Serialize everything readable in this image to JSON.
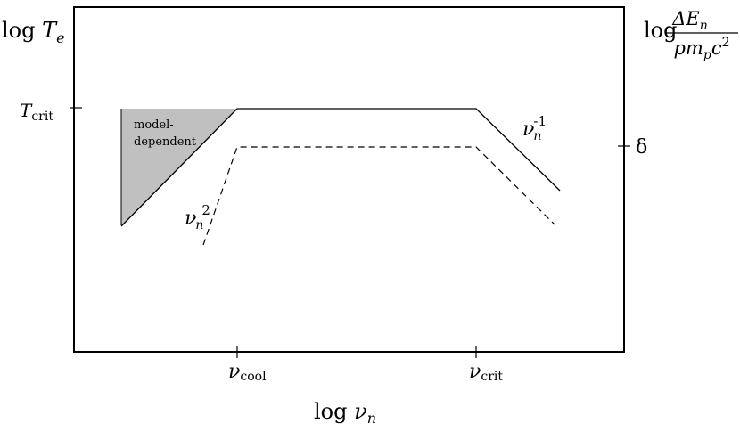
{
  "labels": {
    "y_left": {
      "prefix": "log ",
      "symbol": "T",
      "sub": "e"
    },
    "y_right": {
      "prefix": "log",
      "numerator": {
        "symbol": "ΔE",
        "sub": "n"
      },
      "denominator": {
        "pre": "pm",
        "sub": "p",
        "post": "c",
        "sup": "2"
      }
    },
    "x_axis": {
      "prefix": "log ",
      "symbol": "ν",
      "sub": "n"
    },
    "tick_left": {
      "symbol": "T",
      "sub": "crit"
    },
    "tick_right": {
      "symbol": "δ"
    },
    "x_tick_cool": {
      "symbol": "ν",
      "sub": "cool"
    },
    "x_tick_crit": {
      "symbol": "ν",
      "sub": "crit"
    },
    "slope_up": {
      "symbol": "ν",
      "sub": "n",
      "sup": "2"
    },
    "slope_down": {
      "symbol": "ν",
      "sub": "n",
      "sup": "-1"
    },
    "region_line1": "model-",
    "region_line2": "dependent"
  },
  "colors": {
    "axes": "#000000",
    "curves": "#000000",
    "shaded_region": "#c0c0c0"
  },
  "curves": {
    "solid": {
      "name": "",
      "style": "solid"
    },
    "dashed": {
      "name": "",
      "style": "dashed"
    }
  }
}
